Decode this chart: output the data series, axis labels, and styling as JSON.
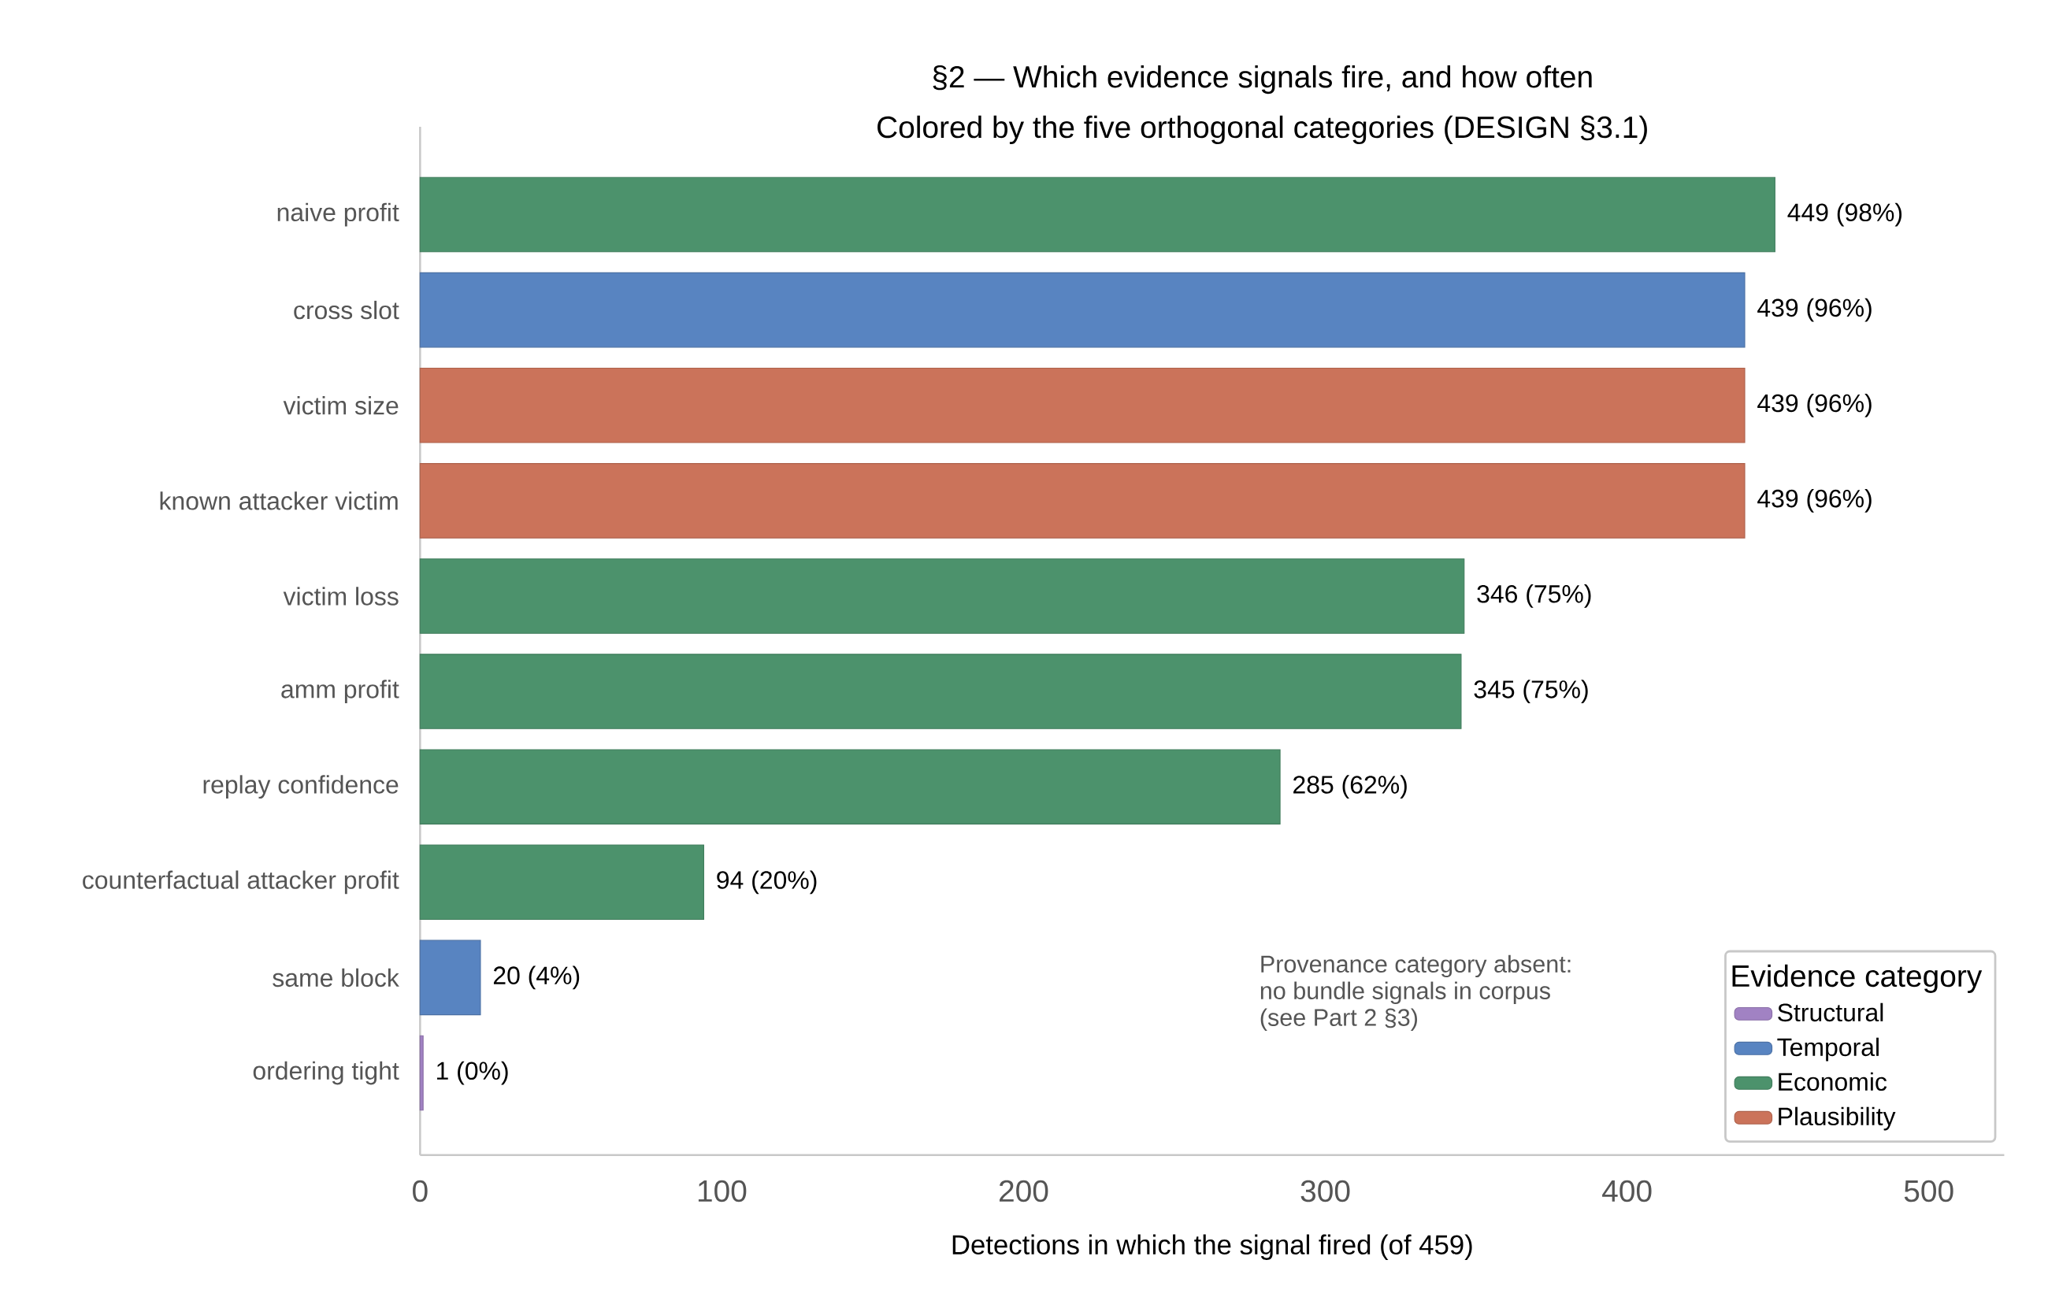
{
  "chart_data": {
    "type": "bar",
    "orientation": "horizontal",
    "title": "§2 — Which evidence signals fire, and how often",
    "subtitle": "Colored by the five orthogonal categories (DESIGN §3.1)",
    "xlabel": "Detections in which the signal fired (of 459)",
    "legend_title": "Evidence category",
    "categories": [
      "naive profit",
      "cross slot",
      "victim size",
      "known attacker victim",
      "victim loss",
      "amm profit",
      "replay confidence",
      "counterfactual attacker profit",
      "same block",
      "ordering tight"
    ],
    "series": [
      {
        "name": "Structural",
        "color": "#a182c3",
        "values": [
          null,
          null,
          null,
          null,
          null,
          null,
          null,
          null,
          null,
          1
        ],
        "value_labels": [
          null,
          null,
          null,
          null,
          null,
          null,
          null,
          null,
          null,
          "1  (0%)"
        ]
      },
      {
        "name": "Temporal",
        "color": "#5884c1",
        "values": [
          null,
          439,
          null,
          null,
          null,
          null,
          null,
          null,
          20,
          null
        ],
        "value_labels": [
          null,
          "439  (96%)",
          null,
          null,
          null,
          null,
          null,
          null,
          "20  (4%)",
          null
        ]
      },
      {
        "name": "Economic",
        "color": "#4c926c",
        "values": [
          449,
          null,
          null,
          null,
          346,
          345,
          285,
          94,
          null,
          null
        ],
        "value_labels": [
          "449  (98%)",
          null,
          null,
          null,
          "346  (75%)",
          "345  (75%)",
          "285  (62%)",
          "94  (20%)",
          null,
          null
        ]
      },
      {
        "name": "Plausibility",
        "color": "#cb735a",
        "values": [
          null,
          null,
          439,
          439,
          null,
          null,
          null,
          null,
          null,
          null
        ],
        "value_labels": [
          null,
          null,
          "439  (96%)",
          "439  (96%)",
          null,
          null,
          null,
          null,
          null,
          null
        ]
      }
    ],
    "xlim": [
      0,
      525
    ],
    "xticks": [
      0,
      100,
      200,
      300,
      400,
      500
    ],
    "annotations": [
      "Provenance category absent:",
      "no bundle signals in corpus",
      "(see Part 2 §3)"
    ],
    "legend": "bottom right",
    "grid": false
  }
}
